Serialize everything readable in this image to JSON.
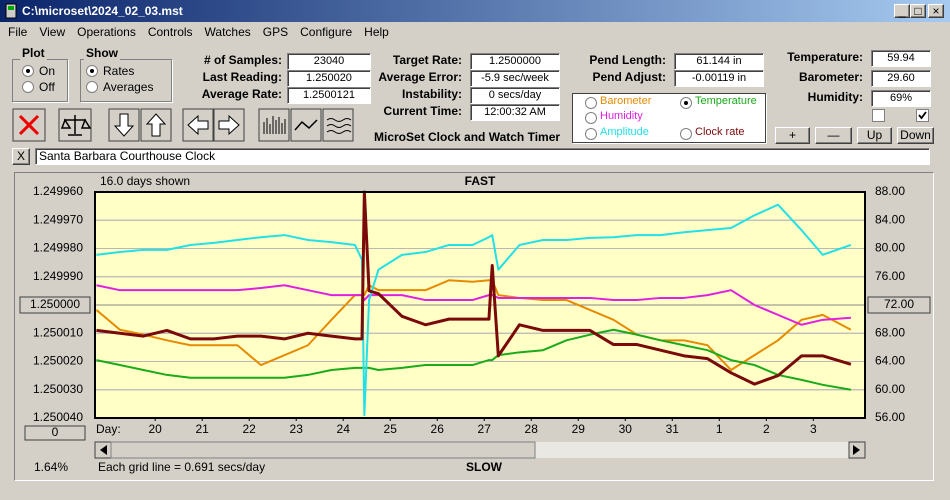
{
  "window": {
    "title": "C:\\microset\\2024_02_03.mst"
  },
  "menu": [
    "File",
    "View",
    "Operations",
    "Controls",
    "Watches",
    "GPS",
    "Configure",
    "Help"
  ],
  "plot": {
    "title": "Plot",
    "options": [
      "On",
      "Off"
    ],
    "selected": 0
  },
  "show": {
    "title": "Show",
    "options": [
      "Rates",
      "Averages"
    ],
    "selected": 0
  },
  "readings": [
    {
      "label": "# of Samples:",
      "value": "23040"
    },
    {
      "label": "Last Reading:",
      "value": "1.250020"
    },
    {
      "label": "Average Rate:",
      "value": "1.2500121"
    }
  ],
  "timing": [
    {
      "label": "Target Rate:",
      "value": "1.2500000"
    },
    {
      "label": "Average Error:",
      "value": "-5.9 sec/week"
    },
    {
      "label": "Instability:",
      "value": "0 secs/day"
    },
    {
      "label": "Current Time:",
      "value": "12:00:32 AM"
    }
  ],
  "app_caption": "MicroSet Clock and Watch Timer",
  "pendulum": [
    {
      "label": "Pend Length:",
      "value": "61.144 in"
    },
    {
      "label": "Pend Adjust:",
      "value": "-0.00119 in"
    }
  ],
  "environment": [
    {
      "label": "Temperature:",
      "value": "59.94"
    },
    {
      "label": "Barometer:",
      "value": "29.60"
    },
    {
      "label": "Humidity:",
      "value": "69%"
    }
  ],
  "checkboxes": [
    false,
    true
  ],
  "buttons": [
    "+",
    "—",
    "Up",
    "Down"
  ],
  "close_watch": "X",
  "watch_name": "Santa Barbara Courthouse Clock",
  "chart_data": {
    "type": "line",
    "days_shown": "16.0 days shown",
    "top_label": "FAST",
    "bottom_label": "SLOW",
    "grid_note": "Each grid line = 0.691 secs/day",
    "percent": "1.64%",
    "xlabel": "Day:",
    "offset_button": "0",
    "x": [
      18.75,
      19.25,
      19.75,
      20.25,
      20.75,
      21.25,
      21.75,
      22.25,
      22.75,
      23.25,
      23.75,
      24.25,
      24.4,
      24.45,
      24.55,
      24.75,
      25.25,
      25.75,
      26.25,
      26.75,
      27.1,
      27.17,
      27.3,
      27.75,
      28.25,
      28.75,
      29.25,
      29.75,
      30.25,
      30.75,
      31.25,
      31.75,
      32.25,
      32.75,
      33.25,
      33.75,
      34.2,
      34.8
    ],
    "xlim": [
      18.72,
      35.1
    ],
    "xticks": [
      20,
      21,
      22,
      23,
      24,
      25,
      26,
      27,
      28,
      29,
      30,
      31,
      {
        "value": 32,
        "label": "1"
      },
      {
        "value": 33,
        "label": "2"
      },
      {
        "value": 34,
        "label": "3"
      }
    ],
    "ylim": [
      1.24996,
      1.25004
    ],
    "y_inverted": true,
    "yticks": [
      {
        "value": 1.24996,
        "label": "1.249960"
      },
      {
        "value": 1.24997,
        "label": "1.249970"
      },
      {
        "value": 1.24998,
        "label": "1.249980"
      },
      {
        "value": 1.24999,
        "label": "1.249990"
      },
      {
        "value": 1.25001,
        "label": "1.250010"
      },
      {
        "value": 1.25002,
        "label": "1.250020"
      },
      {
        "value": 1.25003,
        "label": "1.250030"
      },
      {
        "value": 1.25004,
        "label": "1.250040"
      }
    ],
    "ycenter": {
      "value": 1.25,
      "label": "1.250000"
    },
    "y2lim": [
      56,
      88
    ],
    "y2ticks": [
      {
        "value": 88,
        "label": "88.00"
      },
      {
        "value": 84,
        "label": "84.00"
      },
      {
        "value": 80,
        "label": "80.00"
      },
      {
        "value": 76,
        "label": "76.00"
      },
      {
        "value": 68,
        "label": "68.00"
      },
      {
        "value": 64,
        "label": "64.00"
      },
      {
        "value": 60,
        "label": "60.00"
      },
      {
        "value": 56,
        "label": "56.00"
      }
    ],
    "y2center": {
      "value": 72,
      "label": "72.00"
    },
    "grid": true,
    "selected_series": 1,
    "series": [
      {
        "name": "Barometer",
        "color": "#e68a00",
        "axis": "y2",
        "values": [
          71.3,
          68.5,
          67.8,
          67.0,
          66.3,
          66.3,
          66.3,
          63.5,
          64.9,
          66.3,
          69.9,
          73.4,
          73.4,
          73.4,
          74.8,
          74.1,
          74.1,
          74.1,
          75.5,
          75.3,
          75.5,
          75.5,
          73.4,
          73.0,
          72.7,
          72.7,
          71.3,
          69.9,
          67.8,
          67.0,
          67.0,
          66.3,
          62.8,
          64.9,
          67.0,
          69.9,
          70.6,
          68.5
        ]
      },
      {
        "name": "Temperature",
        "color": "#1aaa1a",
        "axis": "y2",
        "values": [
          64.2,
          63.5,
          62.8,
          62.1,
          61.7,
          61.7,
          61.7,
          61.7,
          61.7,
          62.1,
          62.8,
          63.1,
          63.1,
          63.1,
          63.1,
          62.8,
          63.1,
          63.5,
          63.5,
          63.5,
          64.2,
          64.2,
          64.9,
          65.3,
          65.6,
          67.0,
          67.8,
          68.5,
          67.8,
          67.0,
          66.3,
          65.6,
          64.2,
          63.5,
          62.1,
          61.4,
          60.7,
          60.0
        ]
      },
      {
        "name": "Humidity",
        "color": "#e020e0",
        "axis": "y2",
        "values": [
          74.8,
          74.1,
          74.1,
          74.1,
          74.1,
          74.1,
          74.1,
          74.4,
          74.8,
          74.1,
          73.4,
          73.4,
          73.4,
          72.7,
          73.4,
          73.4,
          73.4,
          72.7,
          72.7,
          72.7,
          73.4,
          73.4,
          73.0,
          73.0,
          73.0,
          73.0,
          73.0,
          72.7,
          72.7,
          73.0,
          73.0,
          73.4,
          74.1,
          72.0,
          70.6,
          69.2,
          69.9,
          70.2
        ]
      },
      {
        "name": "Amplitude",
        "color": "#22e0e8",
        "axis": "y2",
        "values": [
          79.1,
          79.5,
          79.8,
          79.8,
          80.5,
          80.8,
          81.2,
          81.6,
          81.9,
          81.2,
          80.9,
          80.5,
          78.4,
          56.4,
          72.7,
          77.0,
          79.1,
          79.5,
          80.5,
          80.5,
          81.6,
          81.9,
          77.0,
          80.5,
          81.2,
          81.2,
          81.5,
          81.6,
          81.9,
          81.9,
          82.3,
          82.6,
          82.9,
          84.7,
          86.2,
          82.6,
          79.1,
          80.5
        ]
      },
      {
        "name": "Clock rate",
        "color": "#7a0a0a",
        "axis": "y",
        "values": [
          1.250009,
          1.25001,
          1.250011,
          1.250009,
          1.250012,
          1.250012,
          1.250011,
          1.250011,
          1.250012,
          1.25001,
          1.250011,
          1.250012,
          1.250012,
          1.24996,
          1.249995,
          1.249996,
          1.250004,
          1.250007,
          1.250005,
          1.250005,
          1.250005,
          1.249986,
          1.250018,
          1.250007,
          1.250009,
          1.250009,
          1.250009,
          1.250014,
          1.250014,
          1.250016,
          1.250018,
          1.250019,
          1.250024,
          1.250028,
          1.250025,
          1.250018,
          1.250018,
          1.250021
        ]
      }
    ]
  }
}
